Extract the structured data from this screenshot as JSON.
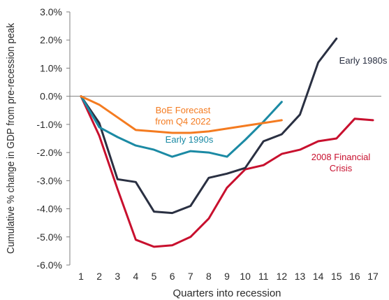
{
  "chart_data": {
    "type": "line",
    "xlabel": "Quarters into recession",
    "ylabel": "Cumulative % change in GDP from pre-recession peak",
    "x_ticks": [
      1,
      2,
      3,
      4,
      5,
      6,
      7,
      8,
      9,
      10,
      11,
      12,
      13,
      14,
      15,
      16,
      17
    ],
    "y_ticks": [
      "3.0%",
      "2.0%",
      "1.0%",
      "0.0%",
      "-1.0%",
      "-2.0%",
      "-3.0%",
      "-4.0%",
      "-5.0%",
      "-6.0%"
    ],
    "ylim": [
      -6.0,
      3.0
    ],
    "xlim": [
      1,
      17
    ],
    "grid": false,
    "series": [
      {
        "name": "2008 Financial Crisis",
        "color": "#c8102e",
        "x": [
          1,
          2,
          3,
          4,
          5,
          6,
          7,
          8,
          9,
          10,
          11,
          12,
          13,
          14,
          15,
          16,
          17
        ],
        "y": [
          0.0,
          -1.4,
          -3.3,
          -5.1,
          -5.35,
          -5.3,
          -5.0,
          -4.35,
          -3.25,
          -2.6,
          -2.45,
          -2.05,
          -1.9,
          -1.6,
          -1.5,
          -0.8,
          -0.85
        ]
      },
      {
        "name": "Early 1980s",
        "color": "#2a3042",
        "x": [
          1,
          2,
          3,
          4,
          5,
          6,
          7,
          8,
          9,
          10,
          11,
          12,
          13,
          14,
          15
        ],
        "y": [
          0.0,
          -0.95,
          -2.95,
          -3.05,
          -4.1,
          -4.15,
          -3.9,
          -2.9,
          -2.75,
          -2.55,
          -1.6,
          -1.35,
          -0.65,
          1.2,
          2.05
        ]
      },
      {
        "name": "Early 1990s",
        "color": "#1b8aa4",
        "x": [
          1,
          2,
          3,
          4,
          5,
          6,
          7,
          8,
          9,
          10,
          11,
          12
        ],
        "y": [
          0.0,
          -1.1,
          -1.45,
          -1.75,
          -1.9,
          -2.15,
          -1.95,
          -2.0,
          -2.15,
          -1.55,
          -0.9,
          -0.2
        ]
      },
      {
        "name": "BoE Forecast from Q4 2022",
        "color": "#f47b20",
        "x": [
          1,
          2,
          3,
          4,
          5,
          6,
          7,
          8,
          9,
          10,
          11,
          12
        ],
        "y": [
          0.0,
          -0.3,
          -0.75,
          -1.2,
          -1.25,
          -1.3,
          -1.3,
          -1.25,
          -1.15,
          -1.05,
          -0.95,
          -0.85
        ]
      }
    ],
    "annotations": [
      {
        "series": "BoE Forecast from Q4 2022",
        "lines": [
          "BoE Forecast",
          "from Q4 2022"
        ],
        "color": "#f47b20"
      },
      {
        "series": "Early 1990s",
        "lines": [
          "Early 1990s"
        ],
        "color": "#1b8aa4"
      },
      {
        "series": "Early 1980s",
        "lines": [
          "Early 1980s"
        ],
        "color": "#2a3042"
      },
      {
        "series": "2008 Financial Crisis",
        "lines": [
          "2008 Financial",
          "Crisis"
        ],
        "color": "#c8102e"
      }
    ]
  }
}
